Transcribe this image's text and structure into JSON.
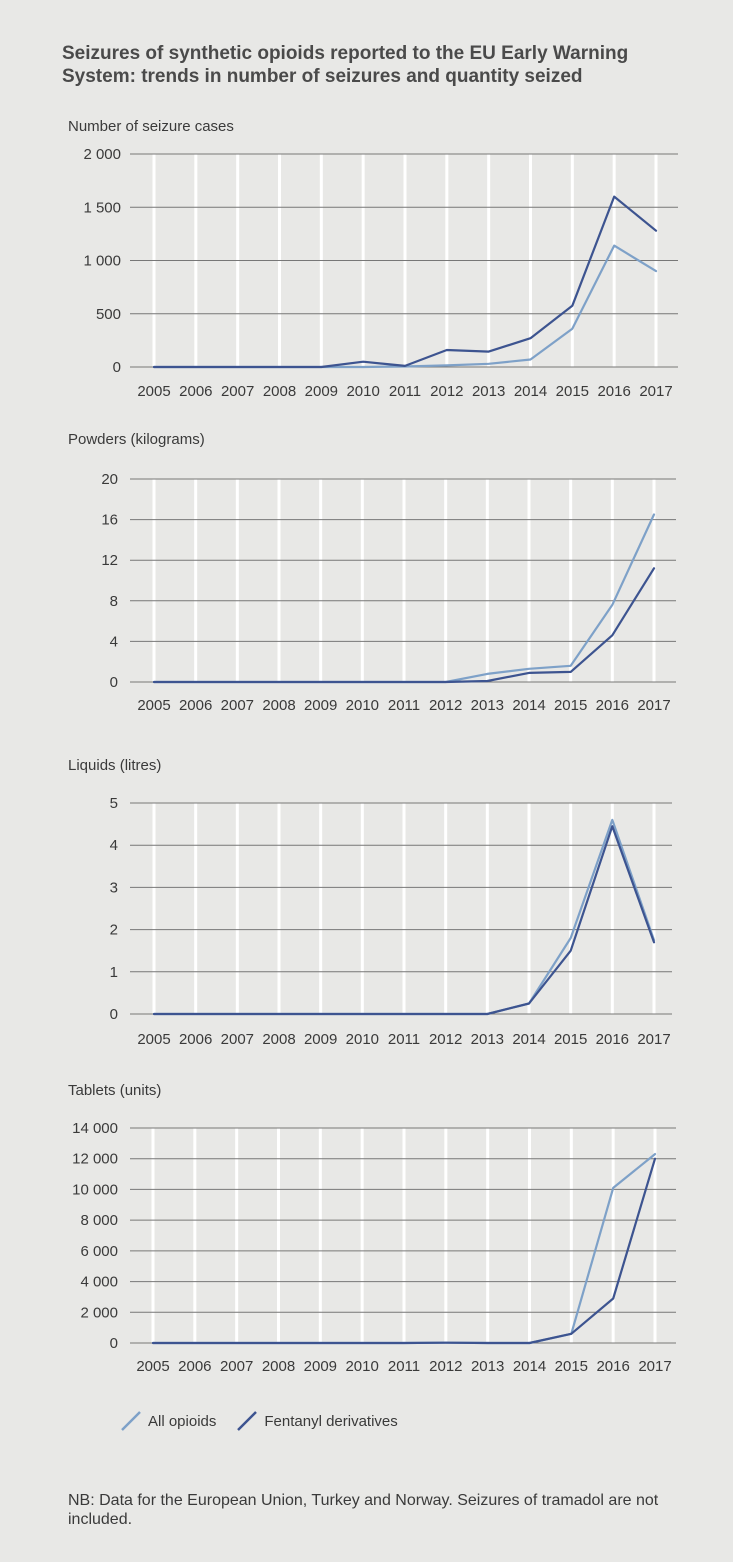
{
  "title": "Seizures of synthetic opioids reported to the EU Early Warning System: trends in number of seizures and quantity seized",
  "colors": {
    "all_opioids": "#7ea1c8",
    "fentanyl": "#3d5490",
    "grid": "#777777",
    "vgrid": "#ffffff"
  },
  "legend": {
    "all_label": "All opioids",
    "fentanyl_label": "Fentanyl derivatives"
  },
  "note": "NB: Data for the European Union, Turkey and Norway. Seizures of tramadol are not included.",
  "chart_data": [
    {
      "type": "line",
      "ylabel": "Number of seizure cases",
      "categories": [
        "2005",
        "2006",
        "2007",
        "2008",
        "2009",
        "2010",
        "2011",
        "2012",
        "2013",
        "2014",
        "2015",
        "2016",
        "2017"
      ],
      "ylim": [
        0,
        2000
      ],
      "yticks": [
        0,
        500,
        1000,
        1500,
        2000
      ],
      "ytick_labels": [
        "0",
        "500",
        "1 000",
        "1 500",
        "2 000"
      ],
      "series": [
        {
          "name": "All opioids",
          "values": [
            0,
            0,
            0,
            0,
            0,
            0,
            5,
            15,
            30,
            70,
            360,
            1140,
            900
          ]
        },
        {
          "name": "Fentanyl derivatives",
          "values": [
            0,
            0,
            0,
            0,
            0,
            50,
            10,
            160,
            145,
            270,
            575,
            1600,
            1280
          ]
        }
      ]
    },
    {
      "type": "line",
      "ylabel": "Powders (kilograms)",
      "categories": [
        "2005",
        "2006",
        "2007",
        "2008",
        "2009",
        "2010",
        "2011",
        "2012",
        "2013",
        "2014",
        "2015",
        "2016",
        "2017"
      ],
      "ylim": [
        0,
        20
      ],
      "yticks": [
        0,
        4,
        8,
        12,
        16,
        20
      ],
      "ytick_labels": [
        "0",
        "4",
        "8",
        "12",
        "16",
        "20"
      ],
      "series": [
        {
          "name": "All opioids",
          "values": [
            0,
            0,
            0,
            0,
            0,
            0,
            0,
            0,
            0.8,
            1.3,
            1.6,
            7.6,
            16.5
          ]
        },
        {
          "name": "Fentanyl derivatives",
          "values": [
            0,
            0,
            0,
            0,
            0,
            0,
            0,
            0,
            0.1,
            0.9,
            1.0,
            4.6,
            11.2
          ]
        }
      ]
    },
    {
      "type": "line",
      "ylabel": "Liquids (litres)",
      "categories": [
        "2005",
        "2006",
        "2007",
        "2008",
        "2009",
        "2010",
        "2011",
        "2012",
        "2013",
        "2014",
        "2015",
        "2016",
        "2017"
      ],
      "ylim": [
        0,
        5
      ],
      "yticks": [
        0,
        1,
        2,
        3,
        4,
        5
      ],
      "ytick_labels": [
        "0",
        "1",
        "2",
        "3",
        "4",
        "5"
      ],
      "series": [
        {
          "name": "All opioids",
          "values": [
            0,
            0,
            0,
            0,
            0,
            0,
            0,
            0,
            0,
            0.25,
            1.8,
            4.6,
            1.75
          ]
        },
        {
          "name": "Fentanyl derivatives",
          "values": [
            0,
            0,
            0,
            0,
            0,
            0,
            0,
            0,
            0,
            0.25,
            1.5,
            4.45,
            1.7
          ]
        }
      ]
    },
    {
      "type": "line",
      "ylabel": "Tablets (units)",
      "categories": [
        "2005",
        "2006",
        "2007",
        "2008",
        "2009",
        "2010",
        "2011",
        "2012",
        "2013",
        "2014",
        "2015",
        "2016",
        "2017"
      ],
      "ylim": [
        0,
        14000
      ],
      "yticks": [
        0,
        2000,
        4000,
        6000,
        8000,
        10000,
        12000,
        14000
      ],
      "ytick_labels": [
        "0",
        "2 000",
        "4 000",
        "6 000",
        "8 000",
        "10 000",
        "12 000",
        "14 000"
      ],
      "series": [
        {
          "name": "All opioids",
          "values": [
            0,
            0,
            0,
            0,
            0,
            0,
            0,
            20,
            0,
            0,
            600,
            10100,
            12300
          ]
        },
        {
          "name": "Fentanyl derivatives",
          "values": [
            0,
            0,
            0,
            0,
            0,
            0,
            0,
            20,
            0,
            0,
            600,
            2900,
            12000
          ]
        }
      ]
    }
  ]
}
